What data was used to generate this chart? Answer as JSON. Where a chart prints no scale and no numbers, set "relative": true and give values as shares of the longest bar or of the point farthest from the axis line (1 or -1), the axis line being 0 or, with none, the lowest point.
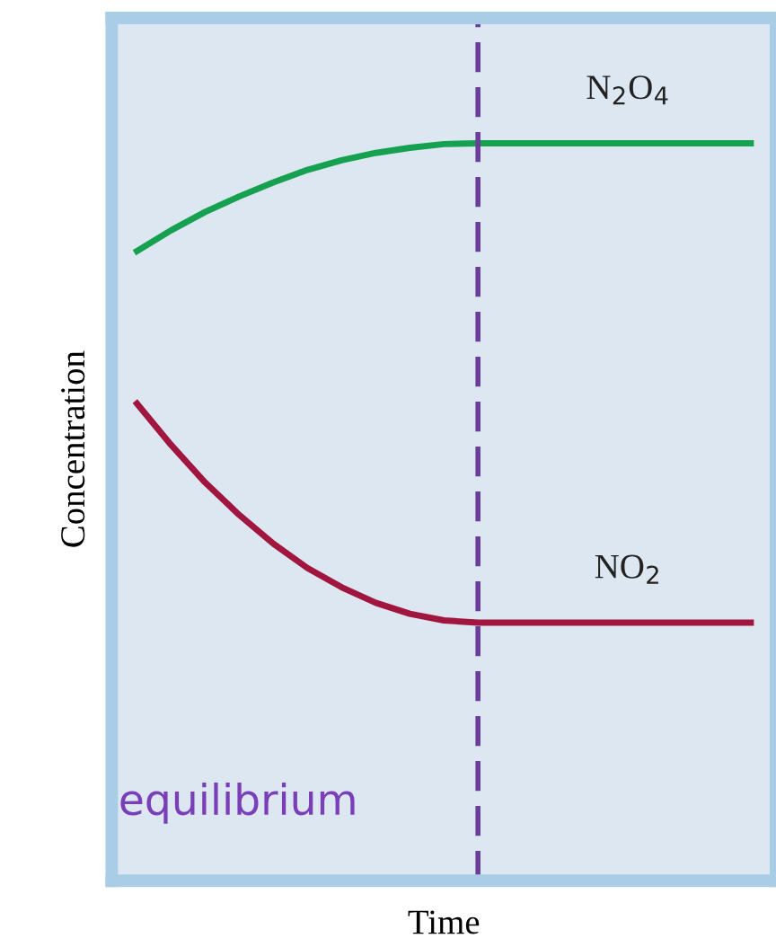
{
  "chart_data": {
    "type": "line",
    "relative": true,
    "xlabel": "Time",
    "ylabel": "Concentration",
    "categories": [
      null,
      null,
      null,
      null,
      null,
      null,
      null,
      null,
      null,
      null,
      null,
      null,
      null,
      null,
      null,
      null,
      null,
      null,
      null
    ],
    "series": [
      {
        "name": "N$_{2}$O$_{4}$",
        "color": "#16a150",
        "values": [
          0.854,
          0.882,
          0.907,
          0.928,
          0.947,
          0.964,
          0.977,
          0.987,
          0.994,
          0.999,
          1.0,
          1.0,
          1.0,
          1.0,
          1.0,
          1.0,
          1.0,
          1.0,
          1.0
        ]
      },
      {
        "name": "NO$_{2}$",
        "color": "#a0163e",
        "values": [
          0.647,
          0.591,
          0.54,
          0.496,
          0.457,
          0.424,
          0.398,
          0.377,
          0.362,
          0.353,
          0.35,
          0.35,
          0.35,
          0.35,
          0.35,
          0.35,
          0.35,
          0.35,
          0.35
        ]
      }
    ],
    "annotations": [
      "equilibrium"
    ],
    "legend": false,
    "grid": false,
    "marker": "none",
    "line_style": "solid"
  }
}
